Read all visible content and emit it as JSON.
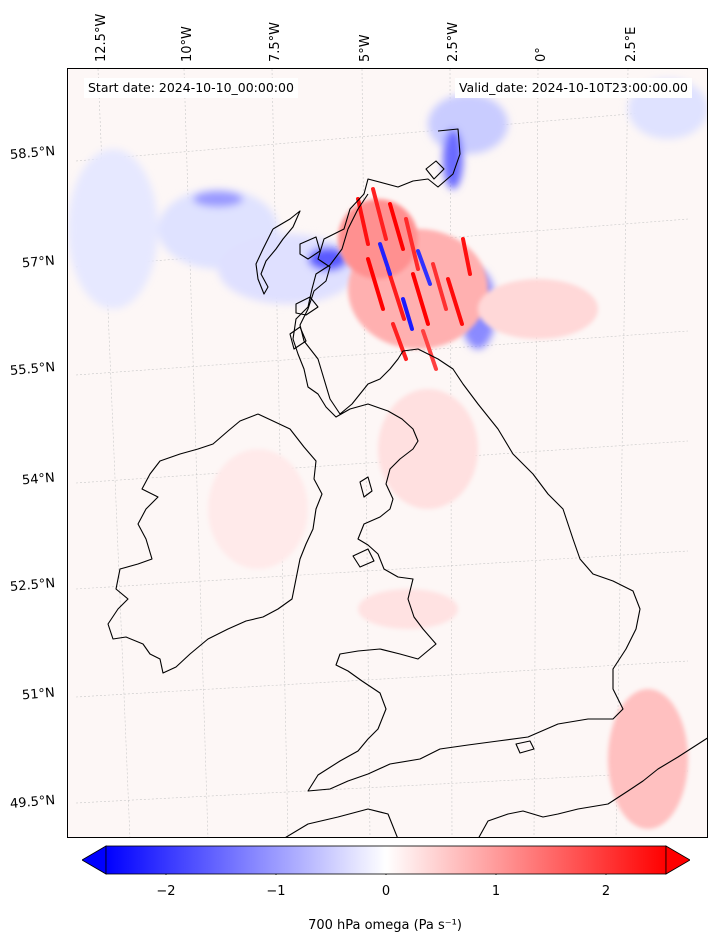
{
  "map": {
    "start_text": "Start date: 2024-10-10_00:00:00",
    "valid_text": "Valid_date: 2024-10-10T23:00:00.00",
    "lon_labels": [
      "12.5°W",
      "10°W",
      "7.5°W",
      "5°W",
      "2.5°W",
      "0°",
      "2.5°E"
    ],
    "lat_labels": [
      "58.5°N",
      "57°N",
      "55.5°N",
      "54°N",
      "52.5°N",
      "51°N",
      "49.5°N"
    ],
    "variable": "700 hPa omega (Pa s⁻¹)",
    "colormap": "bwr",
    "colors": {
      "negative": "#0000ff",
      "zero": "#ffffff",
      "positive": "#ff0000",
      "coastline": "#000000"
    }
  },
  "colorbar": {
    "ticks": [
      "−2",
      "−1",
      "0",
      "1",
      "2"
    ],
    "range": [
      -2.5,
      2.5
    ],
    "extend": "both"
  }
}
